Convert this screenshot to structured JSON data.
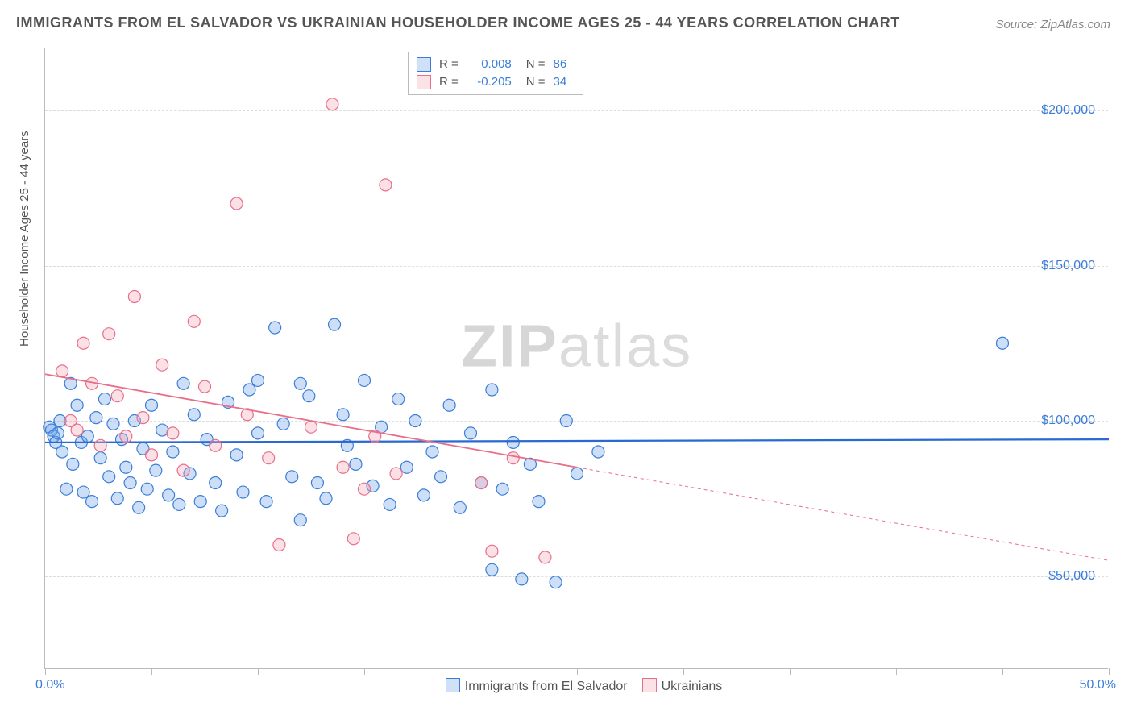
{
  "title": "IMMIGRANTS FROM EL SALVADOR VS UKRAINIAN HOUSEHOLDER INCOME AGES 25 - 44 YEARS CORRELATION CHART",
  "source": "Source: ZipAtlas.com",
  "watermark_a": "ZIP",
  "watermark_b": "atlas",
  "chart": {
    "type": "scatter",
    "ylabel": "Householder Income Ages 25 - 44 years",
    "xlim": [
      0,
      50
    ],
    "ylim": [
      20000,
      220000
    ],
    "x_tick_positions": [
      0,
      5,
      10,
      15,
      20,
      25,
      30,
      35,
      40,
      45,
      50
    ],
    "x_min_label": "0.0%",
    "x_max_label": "50.0%",
    "y_ticks": [
      50000,
      100000,
      150000,
      200000
    ],
    "y_tick_labels": [
      "$50,000",
      "$100,000",
      "$150,000",
      "$200,000"
    ],
    "grid_color": "#dddddd",
    "axis_color": "#bbbbbb",
    "marker_radius": 7.5,
    "series": [
      {
        "name": "Immigrants from El Salvador",
        "color_fill": "#6ea3e8",
        "color_stroke": "#3b7dd8",
        "R": "0.008",
        "N": "86",
        "trend": {
          "x1": 0,
          "y1": 93000,
          "x2": 50,
          "y2": 94000,
          "stroke": "#2a6ad0",
          "width": 2.2
        },
        "points": [
          [
            0.2,
            98000
          ],
          [
            0.3,
            97000
          ],
          [
            0.4,
            95000
          ],
          [
            0.5,
            93000
          ],
          [
            0.6,
            96000
          ],
          [
            0.7,
            100000
          ],
          [
            0.8,
            90000
          ],
          [
            1.0,
            78000
          ],
          [
            1.2,
            112000
          ],
          [
            1.3,
            86000
          ],
          [
            1.5,
            105000
          ],
          [
            1.7,
            93000
          ],
          [
            1.8,
            77000
          ],
          [
            2.0,
            95000
          ],
          [
            2.2,
            74000
          ],
          [
            2.4,
            101000
          ],
          [
            2.6,
            88000
          ],
          [
            2.8,
            107000
          ],
          [
            3.0,
            82000
          ],
          [
            3.2,
            99000
          ],
          [
            3.4,
            75000
          ],
          [
            3.6,
            94000
          ],
          [
            3.8,
            85000
          ],
          [
            4.0,
            80000
          ],
          [
            4.2,
            100000
          ],
          [
            4.4,
            72000
          ],
          [
            4.6,
            91000
          ],
          [
            4.8,
            78000
          ],
          [
            5.0,
            105000
          ],
          [
            5.2,
            84000
          ],
          [
            5.5,
            97000
          ],
          [
            5.8,
            76000
          ],
          [
            6.0,
            90000
          ],
          [
            6.3,
            73000
          ],
          [
            6.5,
            112000
          ],
          [
            6.8,
            83000
          ],
          [
            7.0,
            102000
          ],
          [
            7.3,
            74000
          ],
          [
            7.6,
            94000
          ],
          [
            8.0,
            80000
          ],
          [
            8.3,
            71000
          ],
          [
            8.6,
            106000
          ],
          [
            9.0,
            89000
          ],
          [
            9.3,
            77000
          ],
          [
            9.6,
            110000
          ],
          [
            10.0,
            96000
          ],
          [
            10.4,
            74000
          ],
          [
            10.8,
            130000
          ],
          [
            11.2,
            99000
          ],
          [
            11.6,
            82000
          ],
          [
            12.0,
            112000
          ],
          [
            12.4,
            108000
          ],
          [
            12.8,
            80000
          ],
          [
            13.2,
            75000
          ],
          [
            13.6,
            131000
          ],
          [
            14.0,
            102000
          ],
          [
            14.2,
            92000
          ],
          [
            14.6,
            86000
          ],
          [
            15.0,
            113000
          ],
          [
            15.4,
            79000
          ],
          [
            15.8,
            98000
          ],
          [
            16.2,
            73000
          ],
          [
            16.6,
            107000
          ],
          [
            17.0,
            85000
          ],
          [
            17.4,
            100000
          ],
          [
            17.8,
            76000
          ],
          [
            18.2,
            90000
          ],
          [
            18.6,
            82000
          ],
          [
            19.0,
            105000
          ],
          [
            19.5,
            72000
          ],
          [
            20.0,
            96000
          ],
          [
            20.5,
            80000
          ],
          [
            21.0,
            110000
          ],
          [
            21.5,
            78000
          ],
          [
            22.0,
            93000
          ],
          [
            22.4,
            49000
          ],
          [
            22.8,
            86000
          ],
          [
            23.2,
            74000
          ],
          [
            24.0,
            48000
          ],
          [
            24.5,
            100000
          ],
          [
            25.0,
            83000
          ],
          [
            21.0,
            52000
          ],
          [
            26.0,
            90000
          ],
          [
            10.0,
            113000
          ],
          [
            12.0,
            68000
          ],
          [
            45.0,
            125000
          ]
        ]
      },
      {
        "name": "Ukrainians",
        "color_fill": "#f4a8b8",
        "color_stroke": "#e86e8a",
        "R": "-0.205",
        "N": "34",
        "trend": {
          "x1": 0,
          "y1": 115000,
          "x2": 50,
          "y2": 55000,
          "stroke": "#e86e8a",
          "width": 1.8,
          "solid_until_x": 25
        },
        "points": [
          [
            0.8,
            116000
          ],
          [
            1.2,
            100000
          ],
          [
            1.5,
            97000
          ],
          [
            1.8,
            125000
          ],
          [
            2.2,
            112000
          ],
          [
            2.6,
            92000
          ],
          [
            3.0,
            128000
          ],
          [
            3.4,
            108000
          ],
          [
            3.8,
            95000
          ],
          [
            4.2,
            140000
          ],
          [
            4.6,
            101000
          ],
          [
            5.0,
            89000
          ],
          [
            5.5,
            118000
          ],
          [
            6.0,
            96000
          ],
          [
            6.5,
            84000
          ],
          [
            7.0,
            132000
          ],
          [
            7.5,
            111000
          ],
          [
            8.0,
            92000
          ],
          [
            9.0,
            170000
          ],
          [
            9.5,
            102000
          ],
          [
            10.5,
            88000
          ],
          [
            11.0,
            60000
          ],
          [
            12.5,
            98000
          ],
          [
            13.5,
            202000
          ],
          [
            14.0,
            85000
          ],
          [
            14.5,
            62000
          ],
          [
            15.0,
            78000
          ],
          [
            15.5,
            95000
          ],
          [
            16.0,
            176000
          ],
          [
            16.5,
            83000
          ],
          [
            20.5,
            80000
          ],
          [
            21.0,
            58000
          ],
          [
            22.0,
            88000
          ],
          [
            23.5,
            56000
          ]
        ]
      }
    ]
  },
  "legend_bottom": {
    "items": [
      {
        "label": "Immigrants from El Salvador",
        "fill": "#6ea3e8",
        "stroke": "#3b7dd8"
      },
      {
        "label": "Ukrainians",
        "fill": "#f4a8b8",
        "stroke": "#e86e8a"
      }
    ]
  }
}
